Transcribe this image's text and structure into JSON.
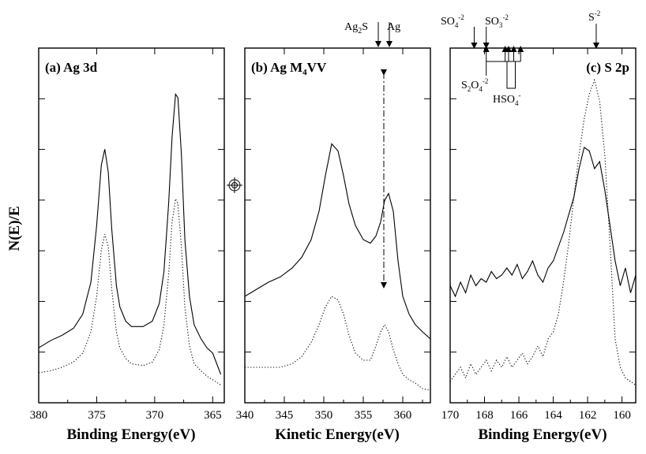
{
  "figure": {
    "ylabel": "N(E)/E"
  },
  "chart_data": [
    {
      "type": "line",
      "panel_label": "(a) Ag 3d",
      "xlabel": "Binding Energy(eV)",
      "xlim": [
        380,
        364
      ],
      "x_ticks": [
        380,
        375,
        370,
        365
      ],
      "x_tick_labels": [
        "380",
        "375",
        "370",
        "365"
      ],
      "series": [
        {
          "style": "solid",
          "x": [
            380,
            379,
            378,
            377,
            376.2,
            375.5,
            375.0,
            374.6,
            374.3,
            374.0,
            373.7,
            373.3,
            373.0,
            372.5,
            372.0,
            371.0,
            370.2,
            369.6,
            369.2,
            368.8,
            368.5,
            368.2,
            368.0,
            367.7,
            367.4,
            367.0,
            366.6,
            366.0,
            365.5,
            365.0,
            364.3
          ],
          "y": [
            0.155,
            0.175,
            0.19,
            0.21,
            0.25,
            0.34,
            0.5,
            0.67,
            0.715,
            0.65,
            0.49,
            0.33,
            0.27,
            0.23,
            0.215,
            0.215,
            0.23,
            0.28,
            0.37,
            0.56,
            0.75,
            0.87,
            0.86,
            0.7,
            0.46,
            0.3,
            0.22,
            0.18,
            0.155,
            0.14,
            0.08
          ]
        },
        {
          "style": "dotted",
          "x": [
            380,
            379,
            378,
            377,
            376.2,
            375.5,
            375.0,
            374.6,
            374.3,
            374.0,
            373.7,
            373.3,
            373.0,
            372.5,
            372.0,
            371.0,
            370.2,
            369.6,
            369.2,
            368.8,
            368.5,
            368.2,
            368.0,
            367.7,
            367.4,
            367.0,
            366.6,
            366.0,
            365.5,
            365.0,
            364.3
          ],
          "y": [
            0.085,
            0.09,
            0.1,
            0.115,
            0.14,
            0.2,
            0.3,
            0.43,
            0.475,
            0.44,
            0.32,
            0.2,
            0.155,
            0.125,
            0.11,
            0.105,
            0.115,
            0.15,
            0.22,
            0.36,
            0.51,
            0.575,
            0.56,
            0.44,
            0.27,
            0.16,
            0.11,
            0.09,
            0.075,
            0.065,
            0.05
          ]
        }
      ]
    },
    {
      "type": "line",
      "panel_label": "(b) Ag M",
      "panel_label_sub": "4",
      "panel_label_tail": "VV",
      "xlabel": "Kinetic Energy(eV)",
      "xlim": [
        340,
        363.5
      ],
      "x_ticks": [
        340,
        345,
        350,
        355,
        360
      ],
      "x_tick_labels": [
        "340",
        "345",
        "350",
        "355",
        "360"
      ],
      "annotations": {
        "ag2s": "Ag",
        "ag2s_sub": "2",
        "ag2s_tail": "S",
        "ag": "Ag",
        "ag2s_x": 356.9,
        "ag_x": 358.3,
        "dashdot_x": 357.6
      },
      "series": [
        {
          "style": "solid",
          "x": [
            340,
            341.5,
            343,
            344.5,
            346,
            347.2,
            348.4,
            349.4,
            350.2,
            351.0,
            351.8,
            352.5,
            353.2,
            354.0,
            355.0,
            355.9,
            356.6,
            357.2,
            357.7,
            358.2,
            358.8,
            359.4,
            360.0,
            360.8,
            361.6,
            362.5,
            363.5
          ],
          "y": [
            0.3,
            0.32,
            0.34,
            0.355,
            0.38,
            0.41,
            0.46,
            0.54,
            0.64,
            0.73,
            0.71,
            0.64,
            0.56,
            0.5,
            0.46,
            0.45,
            0.47,
            0.51,
            0.57,
            0.59,
            0.54,
            0.4,
            0.3,
            0.25,
            0.22,
            0.2,
            0.18
          ]
        },
        {
          "style": "dotted",
          "x": [
            340,
            341.5,
            343,
            344.5,
            346,
            347.2,
            348.4,
            349.4,
            350.2,
            351.0,
            351.8,
            352.5,
            353.2,
            354.0,
            355.0,
            355.9,
            356.6,
            357.2,
            357.7,
            358.2,
            358.8,
            359.4,
            360.0,
            360.8,
            361.6,
            362.5,
            363.5
          ],
          "y": [
            0.1,
            0.1,
            0.1,
            0.1,
            0.11,
            0.13,
            0.17,
            0.22,
            0.27,
            0.3,
            0.29,
            0.25,
            0.19,
            0.14,
            0.12,
            0.12,
            0.16,
            0.2,
            0.22,
            0.2,
            0.15,
            0.11,
            0.08,
            0.065,
            0.055,
            0.04,
            0.035
          ]
        }
      ]
    },
    {
      "type": "line",
      "panel_label": "(c) S 2p",
      "xlabel": "Binding Energy(eV)",
      "xlim": [
        170,
        159.2
      ],
      "x_ticks": [
        170,
        168,
        166,
        164,
        162,
        160
      ],
      "x_tick_labels": [
        "170",
        "168",
        "166",
        "164",
        "162",
        "160"
      ],
      "annotations": {
        "so4": "SO",
        "so4_sub": "4",
        "so4_sup": "-2",
        "so3": "SO",
        "so3_sub": "3",
        "so3_sup": "-2",
        "s2": "S",
        "s2_sup": "-2",
        "s2o4": "S",
        "s2o4_sub1": "2",
        "s2o4_mid": "O",
        "s2o4_sub2": "4",
        "s2o4_sup": "-2",
        "hso4": "HSO",
        "hso4_sub": "4",
        "hso4_sup": "-",
        "so4_x": 168.6,
        "so3_x": 167.9,
        "s2_x": 161.5,
        "s2o4_x": 167.9,
        "hso4_x": [
          166.8,
          166.6,
          166.3,
          165.9
        ]
      },
      "series": [
        {
          "style": "solid",
          "x": [
            170,
            169.7,
            169.4,
            169.1,
            168.8,
            168.5,
            168.2,
            167.9,
            167.6,
            167.3,
            167.0,
            166.7,
            166.4,
            166.1,
            165.8,
            165.5,
            165.2,
            164.9,
            164.6,
            164.3,
            164.0,
            163.7,
            163.4,
            163.1,
            162.8,
            162.5,
            162.2,
            161.9,
            161.6,
            161.3,
            161.0,
            160.7,
            160.4,
            160.1,
            159.8,
            159.5,
            159.2
          ],
          "y": [
            0.33,
            0.3,
            0.34,
            0.31,
            0.36,
            0.33,
            0.35,
            0.34,
            0.37,
            0.35,
            0.36,
            0.38,
            0.36,
            0.39,
            0.35,
            0.37,
            0.4,
            0.36,
            0.34,
            0.38,
            0.4,
            0.44,
            0.48,
            0.53,
            0.58,
            0.66,
            0.72,
            0.71,
            0.66,
            0.68,
            0.6,
            0.5,
            0.4,
            0.33,
            0.38,
            0.31,
            0.36
          ]
        },
        {
          "style": "dotted",
          "x": [
            170,
            169.7,
            169.4,
            169.1,
            168.8,
            168.5,
            168.2,
            167.9,
            167.6,
            167.3,
            167.0,
            166.7,
            166.4,
            166.1,
            165.8,
            165.5,
            165.2,
            164.9,
            164.6,
            164.3,
            164.0,
            163.7,
            163.4,
            163.1,
            162.8,
            162.5,
            162.2,
            161.9,
            161.6,
            161.3,
            161.0,
            160.7,
            160.4,
            160.1,
            159.8,
            159.5,
            159.2
          ],
          "y": [
            0.06,
            0.08,
            0.1,
            0.07,
            0.11,
            0.08,
            0.1,
            0.12,
            0.09,
            0.12,
            0.1,
            0.13,
            0.1,
            0.12,
            0.14,
            0.11,
            0.13,
            0.16,
            0.13,
            0.18,
            0.2,
            0.25,
            0.34,
            0.45,
            0.58,
            0.7,
            0.8,
            0.87,
            0.91,
            0.85,
            0.7,
            0.45,
            0.18,
            0.1,
            0.07,
            0.06,
            0.05
          ]
        }
      ]
    }
  ]
}
